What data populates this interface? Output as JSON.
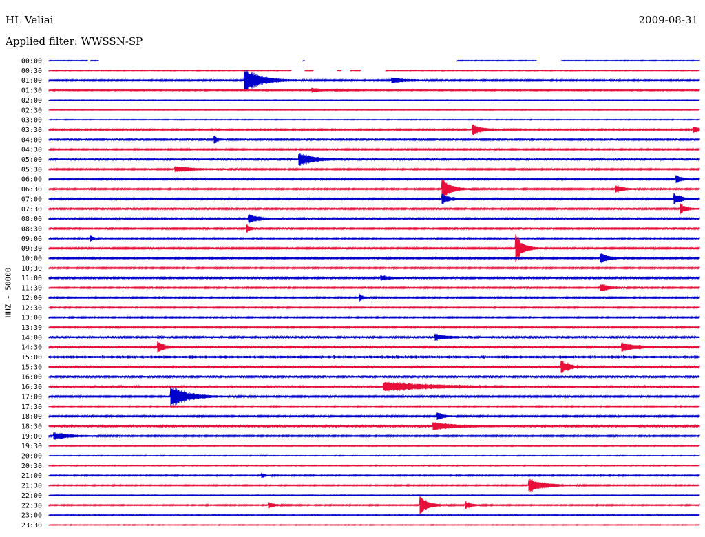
{
  "header": {
    "station": "HL Veliai",
    "date": "2009-08-31",
    "filter_label": "Applied filter: WWSSN-SP"
  },
  "chart_data": {
    "type": "line",
    "title": "HL Veliai",
    "subtitle": "Applied filter: WWSSN-SP",
    "ylabel": "HHZ - 50000",
    "grid": false,
    "colors": {
      "even_row": "#0000cc",
      "odd_row": "#e8103a"
    },
    "row_labels": [
      "00:00",
      "00:30",
      "01:00",
      "01:30",
      "02:00",
      "02:30",
      "03:00",
      "03:30",
      "04:00",
      "04:30",
      "05:00",
      "05:30",
      "06:00",
      "06:30",
      "07:00",
      "07:30",
      "08:00",
      "08:30",
      "09:00",
      "09:30",
      "10:00",
      "10:30",
      "11:00",
      "11:30",
      "12:00",
      "12:30",
      "13:00",
      "13:30",
      "14:00",
      "14:30",
      "15:00",
      "15:30",
      "16:00",
      "16:30",
      "17:00",
      "17:30",
      "18:00",
      "18:30",
      "19:00",
      "19:30",
      "20:00",
      "20:30",
      "21:00",
      "21:30",
      "22:00",
      "22:30",
      "23:00",
      "23:30"
    ],
    "minutes_per_row": 30,
    "noise_level": [
      0.5,
      0.5,
      1,
      0.8,
      0.4,
      0.4,
      0.5,
      1,
      1.2,
      1,
      1.5,
      1,
      1,
      1,
      1.1,
      1.2,
      1.2,
      1.1,
      1,
      1.1,
      1,
      1,
      1.2,
      1,
      1,
      0.9,
      0.9,
      1,
      1.4,
      1.5,
      2,
      1.7,
      1.3,
      1.8,
      1.1,
      0.8,
      1,
      1.5,
      1,
      0.6,
      0.5,
      0.6,
      0.8,
      0.8,
      0.5,
      0.8,
      0.5,
      0.5
    ],
    "events": [
      {
        "row": 2,
        "minute": 9.0,
        "amplitude": 22,
        "duration_min": 1.6
      },
      {
        "row": 2,
        "minute": 15.8,
        "amplitude": 5,
        "duration_min": 1.4
      },
      {
        "row": 3,
        "minute": 12.1,
        "amplitude": 4,
        "duration_min": 1.2
      },
      {
        "row": 7,
        "minute": 19.5,
        "amplitude": 10,
        "duration_min": 1.0
      },
      {
        "row": 7,
        "minute": 29.7,
        "amplitude": 7,
        "duration_min": 0.5
      },
      {
        "row": 8,
        "minute": 7.6,
        "amplitude": 10,
        "duration_min": 0.3
      },
      {
        "row": 10,
        "minute": 11.5,
        "amplitude": 12,
        "duration_min": 1.4
      },
      {
        "row": 11,
        "minute": 5.8,
        "amplitude": 5,
        "duration_min": 2.0
      },
      {
        "row": 12,
        "minute": 28.9,
        "amplitude": 8,
        "duration_min": 0.6
      },
      {
        "row": 13,
        "minute": 18.1,
        "amplitude": 22,
        "duration_min": 0.8
      },
      {
        "row": 13,
        "minute": 26.1,
        "amplitude": 8,
        "duration_min": 0.8
      },
      {
        "row": 14,
        "minute": 18.1,
        "amplitude": 10,
        "duration_min": 0.8
      },
      {
        "row": 14,
        "minute": 28.8,
        "amplitude": 10,
        "duration_min": 0.8
      },
      {
        "row": 15,
        "minute": 29.1,
        "amplitude": 10,
        "duration_min": 0.6
      },
      {
        "row": 16,
        "minute": 9.2,
        "amplitude": 8,
        "duration_min": 1.0
      },
      {
        "row": 17,
        "minute": 9.1,
        "amplitude": 7,
        "duration_min": 0.4
      },
      {
        "row": 18,
        "minute": 1.9,
        "amplitude": 6,
        "duration_min": 0.3
      },
      {
        "row": 19,
        "minute": 21.5,
        "amplitude": 28,
        "duration_min": 0.7
      },
      {
        "row": 20,
        "minute": 25.4,
        "amplitude": 10,
        "duration_min": 0.8
      },
      {
        "row": 22,
        "minute": 15.3,
        "amplitude": 4,
        "duration_min": 1.0
      },
      {
        "row": 23,
        "minute": 25.4,
        "amplitude": 7,
        "duration_min": 1.0
      },
      {
        "row": 24,
        "minute": 14.3,
        "amplitude": 7,
        "duration_min": 0.4
      },
      {
        "row": 28,
        "minute": 17.8,
        "amplitude": 5,
        "duration_min": 1.2
      },
      {
        "row": 29,
        "minute": 5.0,
        "amplitude": 12,
        "duration_min": 0.6
      },
      {
        "row": 29,
        "minute": 26.4,
        "amplitude": 8,
        "duration_min": 1.4
      },
      {
        "row": 31,
        "minute": 23.6,
        "amplitude": 13,
        "duration_min": 0.7
      },
      {
        "row": 33,
        "minute": 15.4,
        "amplitude": 8,
        "duration_min": 4.0
      },
      {
        "row": 34,
        "minute": 5.6,
        "amplitude": 20,
        "duration_min": 1.6
      },
      {
        "row": 36,
        "minute": 17.9,
        "amplitude": 8,
        "duration_min": 0.6
      },
      {
        "row": 37,
        "minute": 17.7,
        "amplitude": 7,
        "duration_min": 2.0
      },
      {
        "row": 38,
        "minute": 0.2,
        "amplitude": 6,
        "duration_min": 1.6
      },
      {
        "row": 42,
        "minute": 9.8,
        "amplitude": 5,
        "duration_min": 0.4
      },
      {
        "row": 43,
        "minute": 22.1,
        "amplitude": 12,
        "duration_min": 1.6
      },
      {
        "row": 45,
        "minute": 17.1,
        "amplitude": 18,
        "duration_min": 0.8
      },
      {
        "row": 45,
        "minute": 10.1,
        "amplitude": 6,
        "duration_min": 0.6
      },
      {
        "row": 45,
        "minute": 19.2,
        "amplitude": 7,
        "duration_min": 0.6
      }
    ],
    "gaps": [
      {
        "row": 0,
        "from": 1.8,
        "to": 1.9
      },
      {
        "row": 0,
        "from": 2.3,
        "to": 11.7
      },
      {
        "row": 0,
        "from": 11.8,
        "to": 18.8
      },
      {
        "row": 0,
        "from": 22.5,
        "to": 23.6
      },
      {
        "row": 1,
        "from": 11.2,
        "to": 11.8
      },
      {
        "row": 1,
        "from": 12.2,
        "to": 13.3
      },
      {
        "row": 1,
        "from": 13.5,
        "to": 13.9
      },
      {
        "row": 1,
        "from": 14.4,
        "to": 15.5
      }
    ]
  }
}
